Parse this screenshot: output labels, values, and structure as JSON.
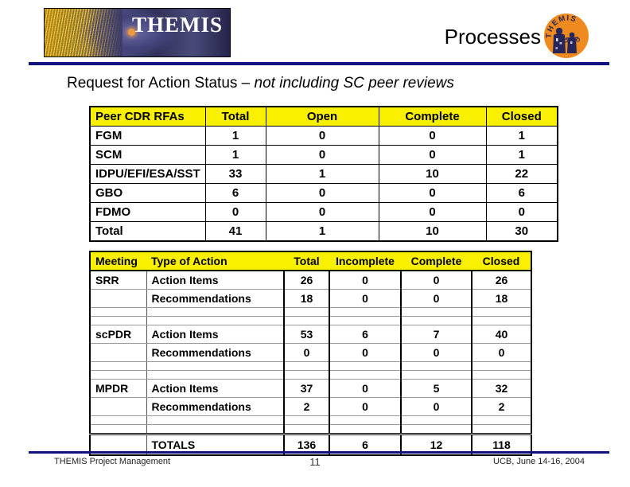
{
  "slide": {
    "logo_text": "THEMIS",
    "badge_text": "THEMIS",
    "title": "Processes",
    "subtitle_regular": "Request for Action Status – ",
    "subtitle_italic": "not including SC peer reviews"
  },
  "rfa_table": {
    "columns": [
      "Peer CDR RFAs",
      "Total",
      "Open",
      "Complete",
      "Closed"
    ],
    "rows": [
      [
        "FGM",
        "1",
        "0",
        "0",
        "1"
      ],
      [
        "SCM",
        "1",
        "0",
        "0",
        "1"
      ],
      [
        "IDPU/EFI/ESA/SST",
        "33",
        "1",
        "10",
        "22"
      ],
      [
        "GBO",
        "6",
        "0",
        "0",
        "6"
      ],
      [
        "FDMO",
        "0",
        "0",
        "0",
        "0"
      ],
      [
        "Total",
        "41",
        "1",
        "10",
        "30"
      ]
    ]
  },
  "action_table": {
    "columns": [
      "Meeting",
      "Type of Action",
      "Total",
      "Incomplete",
      "Complete",
      "Closed"
    ],
    "groups": [
      {
        "meeting": "SRR",
        "rows": [
          [
            "Action Items",
            "26",
            "0",
            "0",
            "26"
          ],
          [
            "Recommendations",
            "18",
            "0",
            "0",
            "18"
          ]
        ]
      },
      {
        "meeting": "scPDR",
        "rows": [
          [
            "Action Items",
            "53",
            "6",
            "7",
            "40"
          ],
          [
            "Recommendations",
            "0",
            "0",
            "0",
            "0"
          ]
        ]
      },
      {
        "meeting": "MPDR",
        "rows": [
          [
            "Action Items",
            "37",
            "0",
            "5",
            "32"
          ],
          [
            "Recommendations",
            "2",
            "0",
            "0",
            "2"
          ]
        ]
      }
    ],
    "totals": {
      "label": "TOTALS",
      "values": [
        "136",
        "6",
        "12",
        "118"
      ]
    }
  },
  "footer": {
    "left": "THEMIS Project Management",
    "page": "11",
    "right": "UCB, June 14-16, 2004"
  },
  "colors": {
    "navy": "#11117E",
    "header_yellow": "#F9F000",
    "badge_orange": "#EE8A1E",
    "badge_ink": "#26265A"
  }
}
